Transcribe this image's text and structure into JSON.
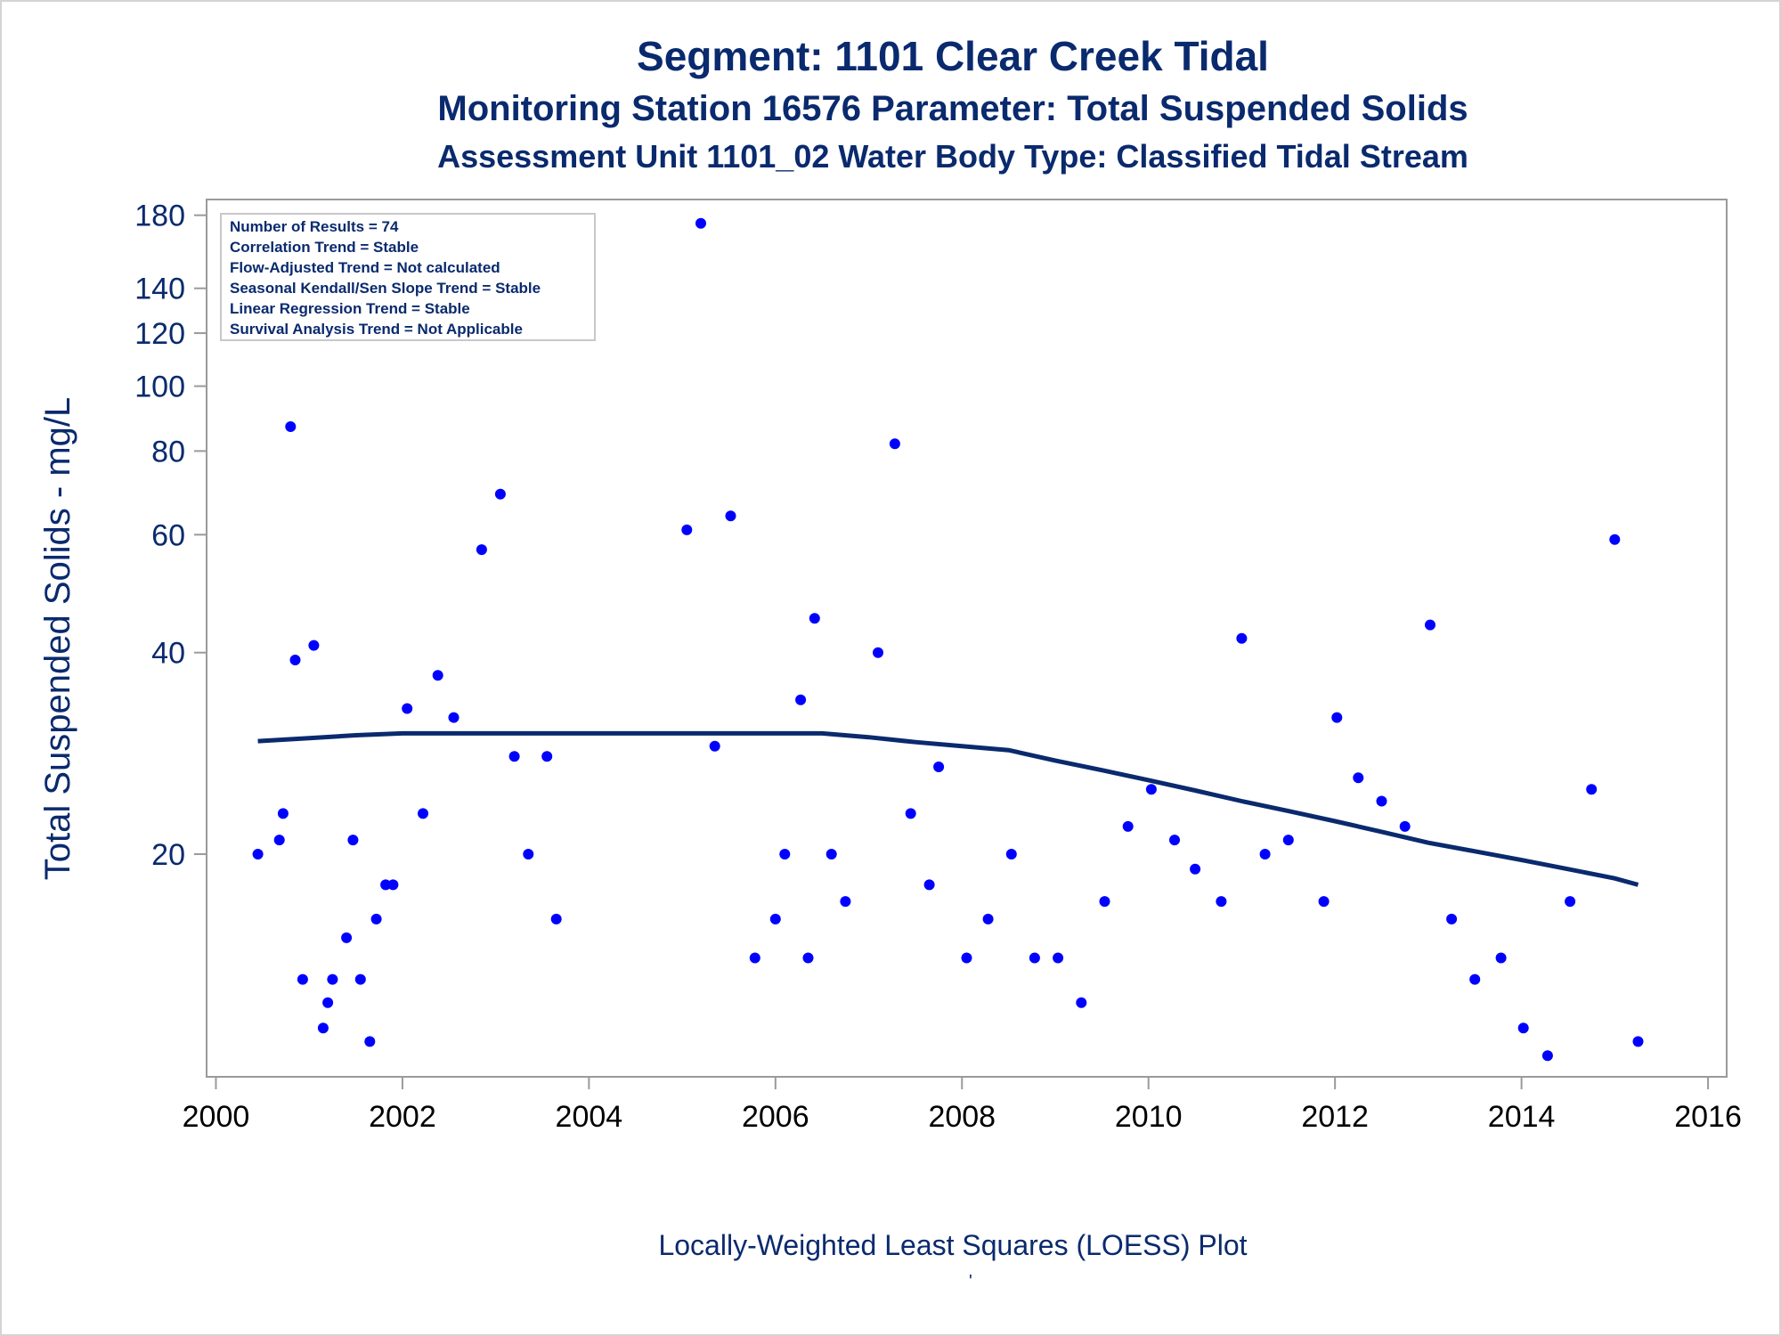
{
  "titles": {
    "line1": "Segment: 1101  Clear Creek Tidal",
    "line2": "Monitoring Station 16576 Parameter: Total Suspended Solids",
    "line3": "Assessment Unit 1101_02   Water Body Type: Classified Tidal Stream"
  },
  "footnote": "Locally-Weighted Least Squares (LOESS) Plot",
  "footnote_mark": "'",
  "colors": {
    "text": "#0a2a6e",
    "points": "#0000ff",
    "loess": "#0a2a6e",
    "axis": "#9a9a9a"
  },
  "chart_data": {
    "type": "scatter",
    "xlabel": "",
    "ylabel": "Total Suspended Solids - mg/L",
    "y_scale": "log",
    "xlim": [
      1999.9,
      2016.2
    ],
    "ylim": [
      9.3,
      190
    ],
    "x_ticks": [
      "2000",
      "2002",
      "2004",
      "2006",
      "2008",
      "2010",
      "2012",
      "2014",
      "2016"
    ],
    "y_ticks": [
      "20",
      "40",
      "60",
      "80",
      "100",
      "120",
      "140",
      "180"
    ],
    "grid": false,
    "stats_box": [
      "Number of Results = 74",
      "Correlation Trend = Stable",
      "Flow-Adjusted Trend = Not calculated",
      "Seasonal Kendall/Sen Slope Trend = Stable",
      "Linear Regression Trend = Stable",
      "Survival Analysis Trend = Not Applicable"
    ],
    "points": [
      [
        2000.45,
        20
      ],
      [
        2000.68,
        21
      ],
      [
        2000.72,
        23
      ],
      [
        2000.8,
        87
      ],
      [
        2000.85,
        39
      ],
      [
        2000.93,
        13
      ],
      [
        2001.05,
        41
      ],
      [
        2001.15,
        11
      ],
      [
        2001.2,
        12
      ],
      [
        2001.25,
        13
      ],
      [
        2001.4,
        15
      ],
      [
        2001.47,
        21
      ],
      [
        2001.55,
        13
      ],
      [
        2001.65,
        10.5
      ],
      [
        2001.72,
        16
      ],
      [
        2001.82,
        18
      ],
      [
        2001.9,
        18
      ],
      [
        2002.05,
        33
      ],
      [
        2002.22,
        23
      ],
      [
        2002.38,
        37
      ],
      [
        2002.55,
        32
      ],
      [
        2002.85,
        57
      ],
      [
        2003.05,
        69
      ],
      [
        2003.2,
        28
      ],
      [
        2003.35,
        20
      ],
      [
        2003.55,
        28
      ],
      [
        2003.65,
        16
      ],
      [
        2005.05,
        61
      ],
      [
        2005.2,
        175
      ],
      [
        2005.35,
        29
      ],
      [
        2005.52,
        64
      ],
      [
        2005.78,
        14
      ],
      [
        2006.0,
        16
      ],
      [
        2006.1,
        20
      ],
      [
        2006.27,
        34
      ],
      [
        2006.35,
        14
      ],
      [
        2006.42,
        45
      ],
      [
        2006.6,
        20
      ],
      [
        2006.75,
        17
      ],
      [
        2007.1,
        40
      ],
      [
        2007.28,
        82
      ],
      [
        2007.45,
        23
      ],
      [
        2007.65,
        18
      ],
      [
        2007.75,
        27
      ],
      [
        2008.05,
        14
      ],
      [
        2008.28,
        16
      ],
      [
        2008.53,
        20
      ],
      [
        2008.78,
        14
      ],
      [
        2009.03,
        14
      ],
      [
        2009.28,
        12
      ],
      [
        2009.53,
        17
      ],
      [
        2009.78,
        22
      ],
      [
        2010.03,
        25
      ],
      [
        2010.28,
        21
      ],
      [
        2010.5,
        19
      ],
      [
        2010.78,
        17
      ],
      [
        2011.0,
        42
      ],
      [
        2011.25,
        20
      ],
      [
        2011.5,
        21
      ],
      [
        2011.88,
        17
      ],
      [
        2012.02,
        32
      ],
      [
        2012.25,
        26
      ],
      [
        2012.5,
        24
      ],
      [
        2012.75,
        22
      ],
      [
        2013.02,
        44
      ],
      [
        2013.25,
        16
      ],
      [
        2013.5,
        13
      ],
      [
        2013.78,
        14
      ],
      [
        2014.02,
        11
      ],
      [
        2014.28,
        10
      ],
      [
        2014.52,
        17
      ],
      [
        2014.75,
        25
      ],
      [
        2015.0,
        59
      ],
      [
        2015.25,
        10.5
      ]
    ],
    "loess": [
      [
        2000.45,
        29.5
      ],
      [
        2001.0,
        29.8
      ],
      [
        2001.5,
        30.1
      ],
      [
        2002.0,
        30.3
      ],
      [
        2003.0,
        30.3
      ],
      [
        2004.0,
        30.3
      ],
      [
        2005.0,
        30.3
      ],
      [
        2006.0,
        30.3
      ],
      [
        2006.5,
        30.3
      ],
      [
        2007.0,
        29.9
      ],
      [
        2007.5,
        29.4
      ],
      [
        2008.0,
        29.0
      ],
      [
        2008.5,
        28.6
      ],
      [
        2009.0,
        27.6
      ],
      [
        2009.5,
        26.7
      ],
      [
        2010.0,
        25.8
      ],
      [
        2010.5,
        24.9
      ],
      [
        2011.0,
        24.0
      ],
      [
        2011.5,
        23.2
      ],
      [
        2012.0,
        22.4
      ],
      [
        2012.5,
        21.6
      ],
      [
        2013.0,
        20.8
      ],
      [
        2013.5,
        20.2
      ],
      [
        2014.0,
        19.6
      ],
      [
        2014.5,
        19.0
      ],
      [
        2015.0,
        18.4
      ],
      [
        2015.25,
        18.0
      ]
    ]
  }
}
